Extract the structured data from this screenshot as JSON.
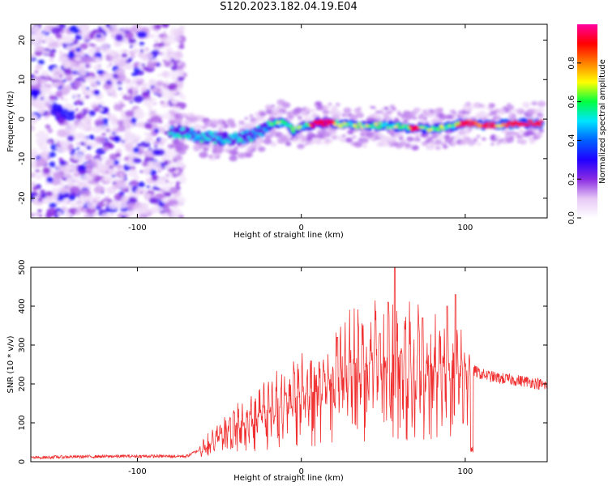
{
  "title": "S120.2023.182.04.19.E04",
  "chart_data": [
    {
      "type": "heatmap",
      "xlabel": "Height of straight line (km)",
      "ylabel": "Frequency (Hz)",
      "xlim": [
        -165,
        150
      ],
      "ylim": [
        -25,
        24
      ],
      "xticks": [
        -100,
        0,
        100
      ],
      "yticks": [
        -20,
        -10,
        0,
        10,
        20
      ],
      "colorbar": {
        "label": "Normalized spectral amplitude",
        "range": [
          0.0,
          1.0
        ],
        "ticks": [
          0.0,
          0.2,
          0.4,
          0.6,
          0.8
        ],
        "colormap": [
          "#ffffff",
          "#e6c8f5",
          "#8a2be2",
          "#2000ff",
          "#0060ff",
          "#00e5ff",
          "#00ff40",
          "#ffff00",
          "#ff8000",
          "#ff0000",
          "#ff00a0"
        ]
      },
      "features": {
        "noise_region_x": [
          -165,
          -80
        ],
        "ridge_x": [
          -80,
          147
        ],
        "ridge_frequency_hz": [
          [
            -80,
            -3
          ],
          [
            -70,
            -3.5
          ],
          [
            -60,
            -4.5
          ],
          [
            -50,
            -5
          ],
          [
            -40,
            -5
          ],
          [
            -30,
            -4
          ],
          [
            -20,
            -2
          ],
          [
            -15,
            -1
          ],
          [
            -10,
            -0.5
          ],
          [
            -5,
            -3
          ],
          [
            0,
            -2
          ],
          [
            10,
            -1
          ],
          [
            20,
            -1
          ],
          [
            30,
            -1.5
          ],
          [
            40,
            -2
          ],
          [
            50,
            -1.5
          ],
          [
            60,
            -2
          ],
          [
            70,
            -2.5
          ],
          [
            80,
            -2.5
          ],
          [
            90,
            -2
          ],
          [
            100,
            -1
          ],
          [
            110,
            -1.5
          ],
          [
            120,
            -1.5
          ],
          [
            130,
            -1
          ],
          [
            145,
            -1
          ]
        ]
      }
    },
    {
      "type": "line",
      "xlabel": "Height of straight line (km)",
      "ylabel": "SNR (10 * v/v)",
      "xlim": [
        -165,
        150
      ],
      "ylim": [
        0,
        500
      ],
      "xticks": [
        -100,
        0,
        100
      ],
      "yticks": [
        0,
        100,
        200,
        300,
        400,
        500
      ],
      "color": "#f03030",
      "series": [
        {
          "x": [
            -165,
            -150,
            -130,
            -110,
            -90,
            -70,
            -60,
            -50,
            -40,
            -30,
            -20,
            -10,
            0,
            10,
            20,
            30,
            40,
            50,
            60,
            70,
            80,
            90,
            100,
            105,
            110,
            120,
            130,
            140,
            150
          ],
          "y": [
            10,
            12,
            13,
            14,
            14,
            14,
            35,
            70,
            90,
            110,
            140,
            155,
            175,
            195,
            215,
            240,
            255,
            265,
            265,
            255,
            240,
            225,
            210,
            235,
            225,
            215,
            210,
            205,
            195
          ]
        }
      ],
      "peaks": [
        {
          "x": 57,
          "y": 500
        },
        {
          "x": 53,
          "y": 410
        },
        {
          "x": 94,
          "y": 430
        },
        {
          "x": 89,
          "y": 400
        },
        {
          "x": 74,
          "y": 370
        },
        {
          "x": 48,
          "y": 330
        },
        {
          "x": 22,
          "y": 320
        }
      ]
    }
  ]
}
